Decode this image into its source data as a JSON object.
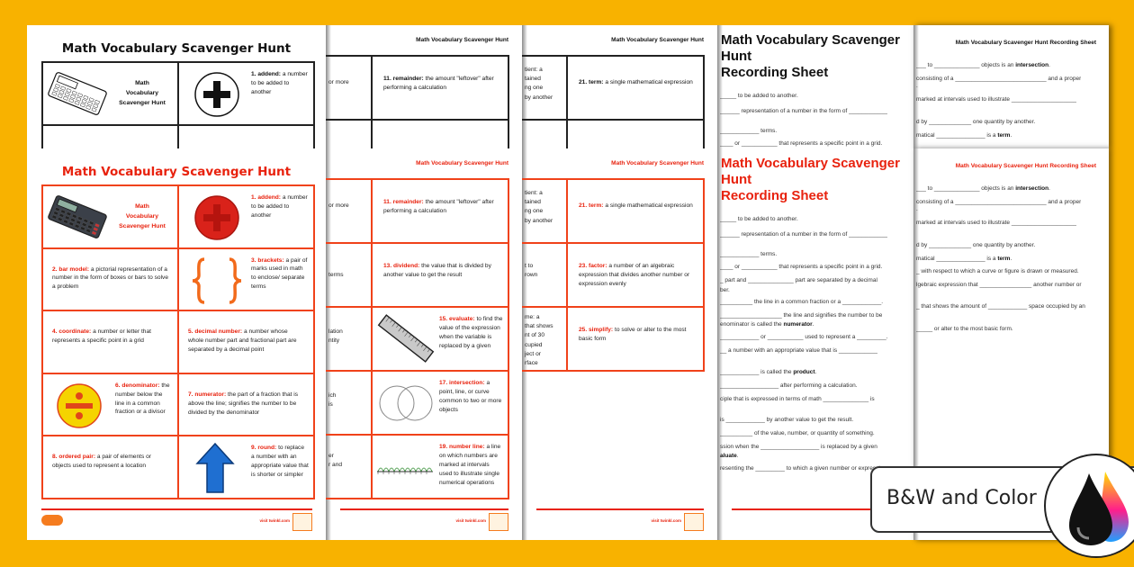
{
  "background_color": "#F8B200",
  "accent_color": "#E8220E",
  "vocab_sheet_1": {
    "title": "Math Vocabulary Scavenger Hunt",
    "cover_text": "Math\nVocabulary\nScavenger Hunt",
    "cells": [
      {
        "num": "1.",
        "term": "addend:",
        "def": "a number to be added to another",
        "icon": "plus-icon"
      },
      {
        "num": "2.",
        "term": "bar model:",
        "def": "a pictorial representation of a number in the form of boxes or bars to solve a problem",
        "icon": ""
      },
      {
        "num": "3.",
        "term": "brackets:",
        "def": "a pair of marks used in math to enclose/ separate terms",
        "icon": "brackets-icon"
      },
      {
        "num": "4.",
        "term": "coordinate:",
        "def": "a number or letter that represents a specific point in a grid",
        "icon": ""
      },
      {
        "num": "5.",
        "term": "decimal number:",
        "def": "a number whose whole number part and fractional part are separated by a decimal point",
        "icon": ""
      },
      {
        "num": "6.",
        "term": "denominator:",
        "def": "the number below the line in a common fraction or a divisor",
        "icon": "divide-icon"
      },
      {
        "num": "7.",
        "term": "numerator:",
        "def": "the part of a fraction that is above the line; signifies the number to be divided by the denominator",
        "icon": ""
      },
      {
        "num": "8.",
        "term": "ordered pair:",
        "def": "a pair of elements or objects used to represent a location",
        "icon": ""
      },
      {
        "num": "9.",
        "term": "round:",
        "def": "to replace a number with an appropriate value that is shorter or simpler",
        "icon": "arrow-up-icon"
      }
    ],
    "footer_url": "visit twinkl.com",
    "logo": "twinkl"
  },
  "vocab_sheet_2": {
    "header": "Math Vocabulary Scavenger Hunt",
    "fragments": [
      "or more",
      "terms",
      "lation\nntity",
      "ich\nis",
      "er\nr and"
    ],
    "cells": [
      {
        "num": "11.",
        "term": "remainder:",
        "def": "the amount \"leftover\" after performing a calculation",
        "icon": ""
      },
      {
        "num": "13.",
        "term": "dividend:",
        "def": "the value that is divided by another value to get the result",
        "icon": ""
      },
      {
        "num": "15.",
        "term": "evaluate:",
        "def": "to find the value of the expression when the variable is replaced by a given",
        "icon": "ruler-icon"
      },
      {
        "num": "17.",
        "term": "intersection:",
        "def": "a point, line, or curve common to two or more objects",
        "icon": "venn-diagram-icon"
      },
      {
        "num": "19.",
        "term": "number line:",
        "def": "a line on which numbers are marked at intervals used to illustrate single numerical operations",
        "icon": "number-line-icon"
      }
    ],
    "footer_url": "visit twinkl.com"
  },
  "vocab_sheet_3": {
    "header": "Math Vocabulary Scavenger Hunt",
    "fragments": [
      "tient: a\ntained\nng one\nby another",
      "t to\nrown",
      "me: a\nthat shows\nnt of 30\ncupied\nject or\nrface"
    ],
    "cells": [
      {
        "num": "21.",
        "term": "term:",
        "def": "a single mathematical expression",
        "icon": ""
      },
      {
        "num": "23.",
        "term": "factor:",
        "def": "a number of an algebraic expression that divides another number or expression evenly",
        "icon": ""
      },
      {
        "num": "25.",
        "term": "simplify:",
        "def": "to solve or alter to the most basic form",
        "icon": ""
      }
    ],
    "footer_url": "visit twinkl.com"
  },
  "recording_sheet_1": {
    "title_line1": "Math Vocabulary Scavenger Hunt",
    "title_line2": "Recording Sheet",
    "lines": [
      {
        "pre": "_____ to be added to another.",
        "bold": "",
        "post": ""
      },
      {
        "pre": "______ representation of a number in the form of ____________",
        "bold": "",
        "post": ""
      },
      {
        "pre": "____________ terms.",
        "bold": "",
        "post": ""
      },
      {
        "pre": "____ or ___________ that represents a specific point in a grid.",
        "bold": "",
        "post": ""
      },
      {
        "pre": "_ part and ______________ part are separated by a decimal",
        "bold": "",
        "post": ""
      },
      {
        "pre": "ber.",
        "bold": "",
        "post": ""
      },
      {
        "pre": "__________ the line in a common fraction or a ____________.",
        "bold": "",
        "post": ""
      },
      {
        "pre": "___________________ the line and signifies the number to be",
        "bold": "",
        "post": ""
      },
      {
        "pre": "enominator is called the ",
        "bold": "numerator",
        "post": "."
      },
      {
        "pre": "____________ or ___________ used to represent a _________.",
        "bold": "",
        "post": ""
      },
      {
        "pre": "__ a number with an appropriate value that is ____________",
        "bold": "",
        "post": ""
      },
      {
        "pre": "____________ is called the ",
        "bold": "product",
        "post": "."
      },
      {
        "pre": "__________________ after performing a calculation.",
        "bold": "",
        "post": ""
      },
      {
        "pre": "ciple that is expressed in terms of math ______________ is",
        "bold": "",
        "post": ""
      },
      {
        "pre": "is ____________ by another value to get the result.",
        "bold": "",
        "post": ""
      },
      {
        "pre": "__________ of the value, number, or quantity of something.",
        "bold": "",
        "post": ""
      },
      {
        "pre": "ssion when the __________________ is replaced by a given",
        "bold": "",
        "post": ""
      },
      {
        "pre": "",
        "bold": "aluate",
        "post": "."
      },
      {
        "pre": "resenting the _________ to which a given number or expression",
        "bold": "",
        "post": ""
      }
    ]
  },
  "recording_sheet_2": {
    "header": "Math Vocabulary Scavenger Hunt Recording Sheet",
    "lines": [
      {
        "pre": "___ to ______________ objects is an ",
        "bold": "intersection",
        "post": "."
      },
      {
        "pre": "consisting of a ____________________________ and a proper",
        "bold": "",
        "post": ""
      },
      {
        "pre": ".",
        "bold": "",
        "post": ""
      },
      {
        "pre": "marked at intervals used to illustrate ____________________",
        "bold": "",
        "post": ""
      },
      {
        "pre": "d by _____________ one quantity by another.",
        "bold": "",
        "post": ""
      },
      {
        "pre": "matical _______________ is a ",
        "bold": "term",
        "post": "."
      },
      {
        "pre": "_ with respect to which a curve or figure is drawn or measured.",
        "bold": "",
        "post": ""
      },
      {
        "pre": "lgebraic expression that ________________ another number or",
        "bold": "",
        "post": ""
      },
      {
        "pre": "_ that shows the amount of ____________ space occupied by an",
        "bold": "",
        "post": ""
      },
      {
        "pre": "_____ or alter to the most basic form.",
        "bold": "",
        "post": ""
      }
    ]
  },
  "badge": {
    "label": "B&W and Color",
    "icon": "ink-drops-icon"
  }
}
